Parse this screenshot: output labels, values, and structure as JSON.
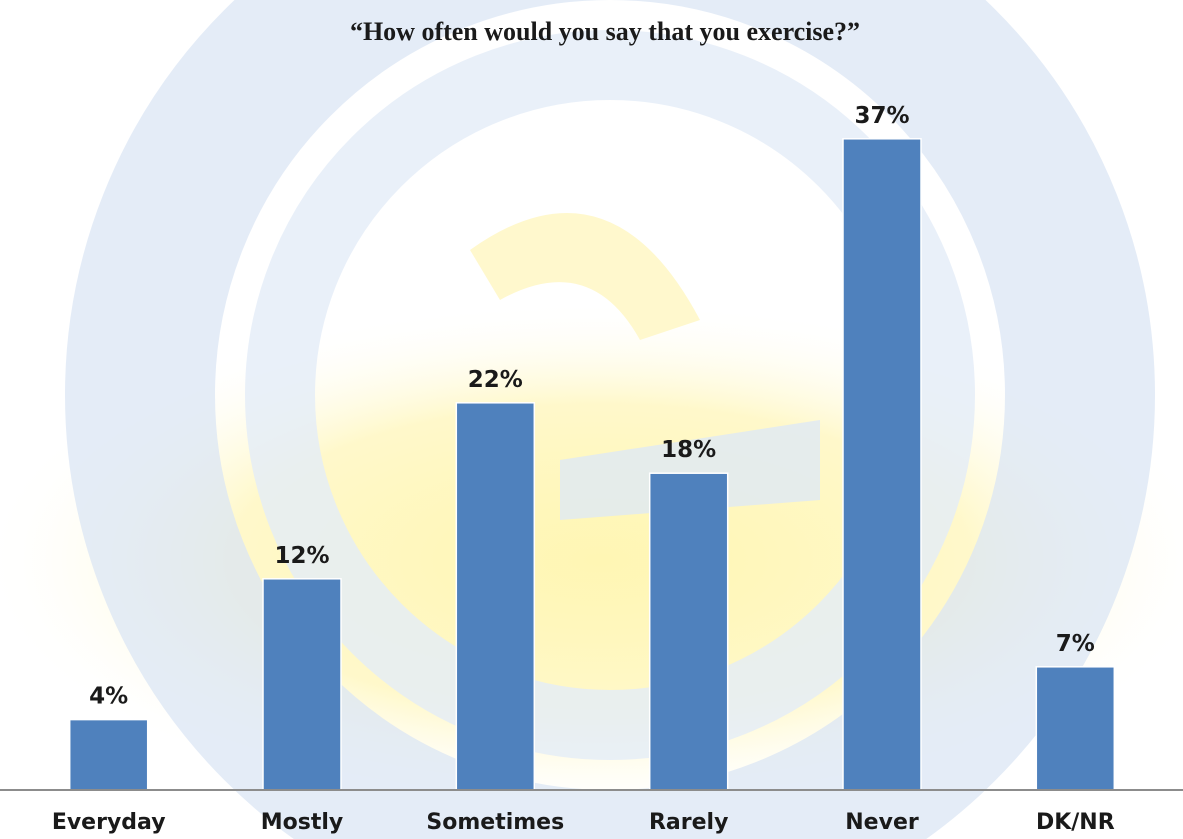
{
  "chart_data": {
    "type": "bar",
    "title": "“How often would you say that you exercise?”",
    "categories": [
      "Everyday",
      "Mostly",
      "Sometimes",
      "Rarely",
      "Never",
      "DK/NR"
    ],
    "values": [
      4,
      12,
      22,
      18,
      37,
      7
    ],
    "value_labels": [
      "4%",
      "12%",
      "22%",
      "18%",
      "37%",
      "7%"
    ],
    "unit": "%",
    "ylim": [
      0,
      40
    ],
    "grid": false,
    "legend": "none",
    "bar_color": "#4f81bd",
    "axis_color": "#8c8c8c"
  },
  "watermark": {
    "ring_color": "#d6e2f2",
    "ring_inner_color": "#e8eff8",
    "glow_color": "#fff3a8"
  }
}
